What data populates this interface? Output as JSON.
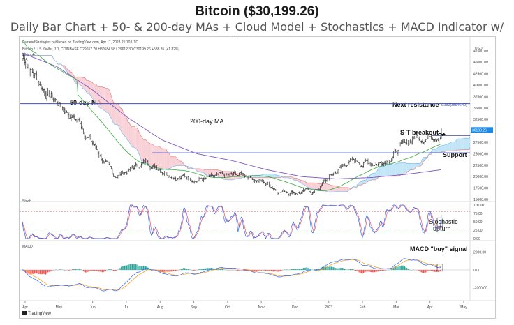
{
  "header": {
    "title": "Bitcoin ($30,199.26)",
    "subtitle": "Daily Bar Chart + 50- & 200-day MAs + Cloud Model + Stochastics + MACD Indicator w/ Histogram"
  },
  "frame": {
    "publisher": "FairleadStrategies published on TradingView.com, Apr 11, 2023 21:10 UTC",
    "symbol_line": "Bitcoin / U.S. Dollar, 1D, COINBASE  O29657.70  H30584.58  L29612.30  C30199.26  +538.85 (+1.82%)",
    "indicator_ichimoku": "Ichimoku",
    "indicator_ma": "MA",
    "currency": "USD",
    "stoch_label": "Stoch",
    "macd_label": "MACD",
    "footer_brand": "TradingView"
  },
  "annotations": {
    "fifty_day": "50-day MA",
    "two_hundred_day": "200-day MA",
    "next_resistance": "Next resistance",
    "next_resistance_value": "0.382(35946.42)",
    "st_breakout": "S-T breakout",
    "support": "Support",
    "stochastic_1": "Stochastic",
    "stochastic_2": "upturn",
    "macd_signal": "MACD \"buy\" signal"
  },
  "colors": {
    "price_bars": "#111111",
    "ma50": "#4caf50",
    "ma200": "#7e57c2",
    "cloud_bull": "#b6e0f5",
    "cloud_bear": "#f7c9d0",
    "kijun": "#d9333f",
    "tenkan": "#2962ff",
    "resistance_line": "#3f51b5",
    "breakout_line": "#1a237e",
    "stoch_k": "#2962ff",
    "stoch_d": "#ef5350",
    "hist_pos": "#26a69a",
    "hist_neg": "#ef5350"
  },
  "chart_data": [
    {
      "type": "candlestick",
      "title": "Bitcoin / U.S. Dollar, 1D",
      "ylabel": "USD",
      "ylim": [
        15000,
        49000
      ],
      "x_ticks": [
        "Apr",
        "May",
        "Jun",
        "Jul",
        "Aug",
        "Sep",
        "Oct",
        "Nov",
        "Dec",
        "2023",
        "Feb",
        "Mar",
        "Apr",
        "May"
      ],
      "y_ticks": [
        47500,
        45000,
        42500,
        40000,
        37500,
        35000,
        32500,
        30000,
        27500,
        25000,
        22500,
        20000,
        17500,
        15000
      ],
      "y_tick_labels": [
        "47500.00",
        "45000.00",
        "42500.00",
        "40000.00",
        "37500.00",
        "35000.00",
        "32500.00",
        "30000.00",
        "27500.00",
        "25000.00",
        "22500.00",
        "20000.00",
        "17500.00",
        "15000.00"
      ],
      "current_price": 30199.26,
      "current_price_label": "30199.26",
      "resistance": 35946.42,
      "breakout_level": 29000,
      "support_level": 25200,
      "price_path": {
        "months": [
          "Apr",
          "May",
          "Jun",
          "Jul",
          "Aug",
          "Sep",
          "Oct",
          "Nov",
          "Dec",
          "2023",
          "Feb",
          "Mar",
          "Apr"
        ],
        "monthly_close": [
          38500,
          31800,
          19900,
          23300,
          20100,
          19400,
          20500,
          17100,
          16600,
          23100,
          23200,
          28400,
          30199
        ]
      },
      "series": [
        {
          "name": "50-day MA",
          "values": [
            44000,
            40000,
            33000,
            24000,
            22000,
            22000,
            20000,
            19500,
            17500,
            20000,
            22500,
            24500,
            27000
          ]
        },
        {
          "name": "200-day MA",
          "values": [
            47000,
            44000,
            39000,
            33000,
            28000,
            25000,
            23500,
            21500,
            20000,
            19500,
            19800,
            20500,
            21500
          ]
        }
      ]
    },
    {
      "type": "line",
      "title": "Stoch",
      "ylim": [
        0,
        100
      ],
      "y_ticks": [
        100,
        75,
        50,
        25,
        0
      ],
      "y_tick_labels": [
        "100.00",
        "75.00",
        "50.00",
        "25.00",
        "0.00"
      ],
      "overbought": 80,
      "oversold": 20,
      "latest_k": 70
    },
    {
      "type": "bar",
      "title": "MACD",
      "ylim": [
        -3000,
        3000
      ],
      "y_ticks": [
        2000,
        0,
        -2000
      ],
      "y_tick_labels": [
        "2000.00",
        "0.00",
        "-2000.00"
      ]
    }
  ]
}
